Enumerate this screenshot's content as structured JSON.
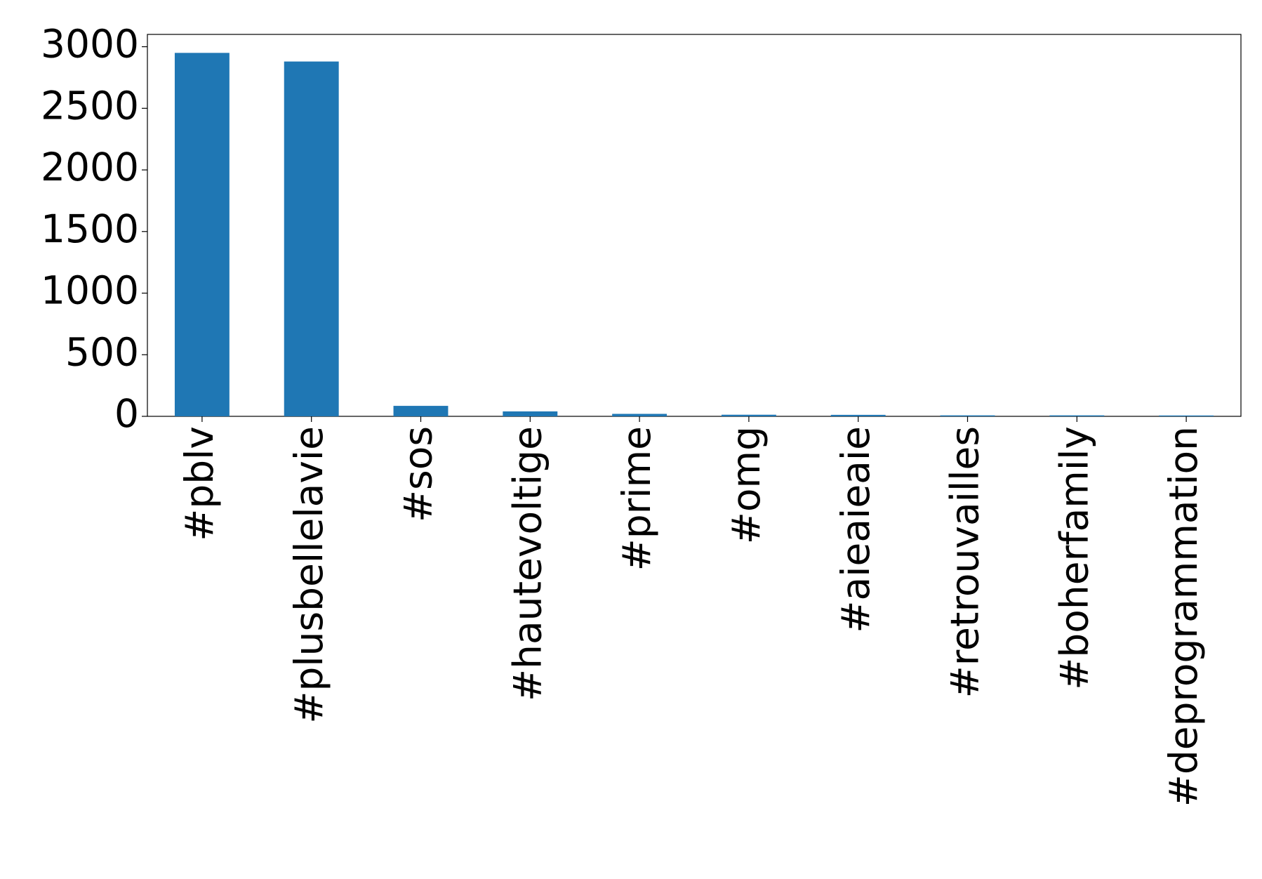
{
  "chart_data": {
    "type": "bar",
    "categories": [
      "#pblv",
      "#plusbellelavie",
      "#sos",
      "#hautevoltige",
      "#prime",
      "#omg",
      "#aieaieaie",
      "#retrouvailles",
      "#boherfamily",
      "#deprogrammation"
    ],
    "values": [
      2950,
      2880,
      85,
      40,
      20,
      13,
      12,
      8,
      8,
      7
    ],
    "color": "#1f77b4",
    "ylim": [
      0,
      3100
    ],
    "yticks": [
      0,
      500,
      1000,
      1500,
      2000,
      2500,
      3000
    ],
    "grid": false
  }
}
